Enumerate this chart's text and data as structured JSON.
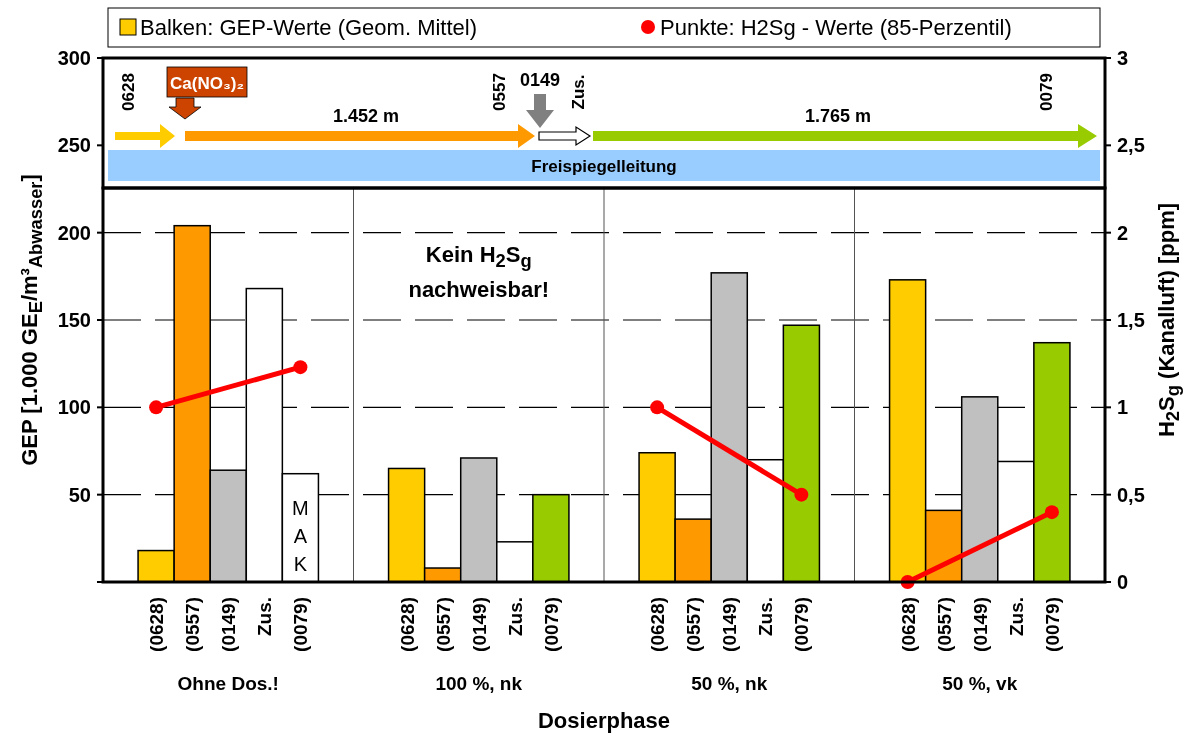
{
  "chart_data": {
    "type": "bar",
    "xlabel": "Dosierphase",
    "ylabel": "GEP [1.000 GE$_{E}$/m³$_{Abwasser}$]",
    "y2label": "H$_{2}$S$_{g}$ (Kanalluft) [ppm]",
    "categories": [
      "(0628)",
      "(0557)",
      "(0149)",
      "Zus.",
      "(0079)",
      "(0628)",
      "(0557)",
      "(0149)",
      "Zus.",
      "(0079)",
      "(0628)",
      "(0557)",
      "(0149)",
      "Zus.",
      "(0079)",
      "(0628)",
      "(0557)",
      "(0149)",
      "Zus.",
      "(0079)"
    ],
    "series": [
      {
        "name": "Balken: GEP-Werte (Geom. Mittel)",
        "color": "#ffcc00",
        "values": [
          18,
          204,
          64,
          168,
          62,
          65,
          8,
          71,
          23,
          50,
          74,
          36,
          177,
          70,
          147,
          173,
          41,
          106,
          69,
          137
        ],
        "colors": [
          "#ffcc00",
          "#ff9900",
          "#c0c0c0",
          "#ffffff",
          "#ffffff",
          "#ffcc00",
          "#ff9900",
          "#c0c0c0",
          "#ffffff",
          "#99cc00",
          "#ffcc00",
          "#ff9900",
          "#c0c0c0",
          "#ffffff",
          "#99cc00",
          "#ffcc00",
          "#ff9900",
          "#c0c0c0",
          "#ffffff",
          "#99cc00"
        ]
      },
      {
        "name": "Punkte: H2Sg - Werte (85-Perzentil)",
        "type": "line",
        "axis": "y2",
        "color": "#ff0000",
        "values": [
          1.0,
          null,
          null,
          null,
          1.23,
          null,
          null,
          null,
          null,
          null,
          null,
          null,
          null,
          null,
          null,
          null,
          null,
          null,
          null,
          null
        ]
      },
      {
        "type": "line",
        "axis": "y2",
        "color": "#ff0000",
        "values": [
          null,
          null,
          null,
          null,
          null,
          null,
          null,
          null,
          null,
          null,
          1.0,
          null,
          null,
          null,
          0.5,
          null,
          null,
          null,
          null,
          null
        ]
      },
      {
        "type": "line",
        "axis": "y2",
        "color": "#ff0000",
        "values": [
          null,
          null,
          null,
          null,
          null,
          null,
          null,
          null,
          null,
          null,
          null,
          null,
          null,
          null,
          null,
          0,
          null,
          null,
          null,
          0.4
        ]
      }
    ],
    "ylim": [
      0,
      300
    ],
    "yticks": [
      {
        "value": 0,
        "label": null
      },
      50,
      100,
      150,
      200,
      250,
      300
    ],
    "y2lim": [
      0,
      3
    ],
    "y2ticks": [
      0,
      {
        "value": 0.5,
        "label": "0,5"
      },
      1,
      {
        "value": 1.5,
        "label": "1,5"
      },
      2,
      {
        "value": 2.5,
        "label": "2,5"
      },
      3
    ],
    "grid": "y",
    "legend": "top",
    "marker": "circle",
    "line_style": "solid",
    "annotations": [
      "Ohne Dos.!",
      "100 %, nk",
      "50 %, nk",
      "50 %, vk",
      "0628",
      "Ca(NO₃)₂",
      "1.452 m",
      "0557",
      "0149",
      "Zus.",
      "1.765 m",
      "0079",
      "Freispiegelleitung",
      "Kein H$_{2}$S$_{g}$",
      "nachweisbar!",
      "MAK"
    ]
  }
}
